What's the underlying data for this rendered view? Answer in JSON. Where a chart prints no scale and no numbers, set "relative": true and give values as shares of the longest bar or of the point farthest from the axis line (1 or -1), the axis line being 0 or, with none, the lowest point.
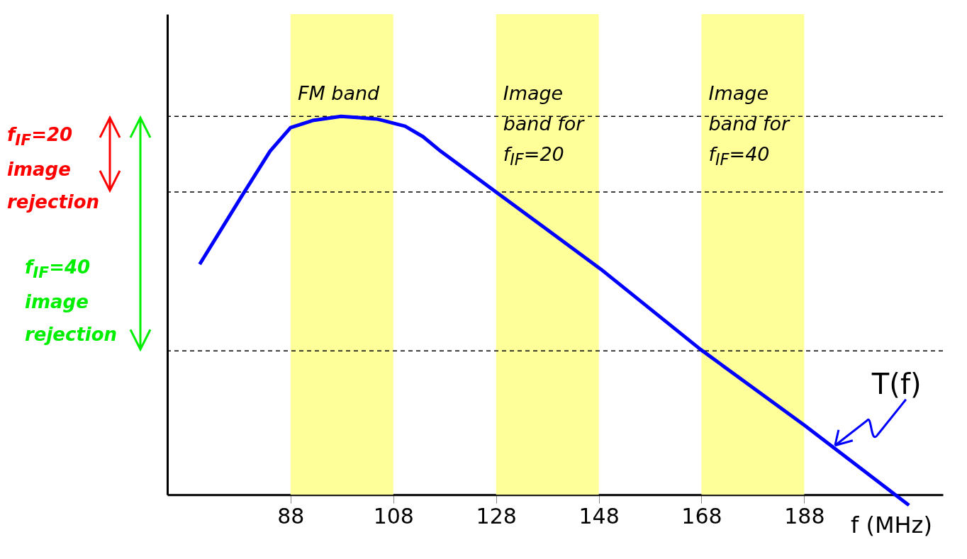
{
  "chart_data": {
    "type": "line",
    "relative": true,
    "xlabel": "f (MHz)",
    "xlim": [
      64,
      215
    ],
    "xticks": [
      88,
      108,
      128,
      148,
      168,
      188
    ],
    "grid": false,
    "x": [
      70.3,
      78.4,
      84,
      88,
      92.3,
      97.8,
      104.8,
      110.3,
      113.8,
      117.2,
      127.9,
      148.4,
      167.8,
      188,
      208.4
    ],
    "series": [
      {
        "color": "#0000ff",
        "values": [
          0.609,
          0.787,
          0.908,
          0.97,
          0.989,
          1.0,
          0.993,
          0.974,
          0.946,
          0.908,
          0.801,
          0.596,
          0.384,
          0.184,
          -0.028
        ]
      }
    ],
    "bands": [
      {
        "axis": "x",
        "from": 88,
        "to": 108,
        "label": "FM band",
        "color": "#ffff99"
      },
      {
        "axis": "x",
        "from": 128,
        "to": 148,
        "label": "Image band for f$_{IF}$=20",
        "color": "#ffff99"
      },
      {
        "axis": "x",
        "from": 168,
        "to": 188,
        "label": "Image band for f$_{IF}$=40",
        "color": "#ffff99"
      }
    ],
    "ref_lines": [
      {
        "axis": "y",
        "value": 1.0,
        "line_style": "dashed",
        "color": "#000000"
      },
      {
        "axis": "y",
        "value": 0.8,
        "line_style": "dashed",
        "color": "#000000"
      },
      {
        "axis": "y",
        "value": 0.38,
        "line_style": "dashed",
        "color": "#000000"
      }
    ],
    "annotations": [
      "f$_{IF}$=20 image rejection",
      "f$_{IF}$=40 image rejection",
      {
        "text": "T(f)",
        "x": 194,
        "y": 0.13
      }
    ]
  }
}
